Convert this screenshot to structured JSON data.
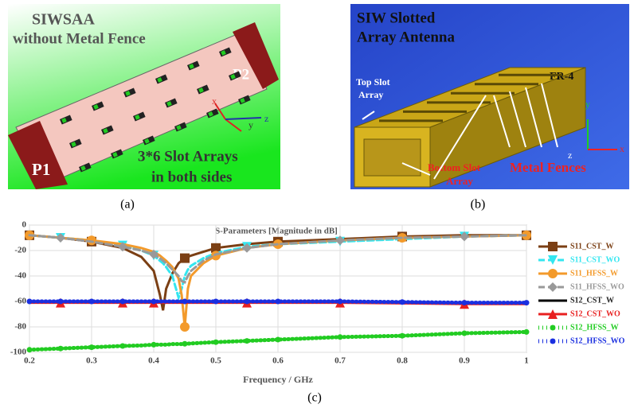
{
  "panels": [
    {
      "caption": "(a)",
      "labels": [
        "SIWSAA",
        "without Metal Fence",
        "P2",
        "P1",
        "3*6 Slot Arrays",
        "in both sides",
        "x",
        "y",
        "z"
      ]
    },
    {
      "caption": "(b)",
      "labels": [
        "SIW Slotted",
        "Array Antenna",
        "FR-4",
        "Top Slot",
        "Array",
        "Bottom Slot",
        "Array",
        "Metal Fences",
        "y",
        "x",
        "z"
      ]
    }
  ],
  "chart_data": {
    "type": "line",
    "title": "S-Parameters [Magnitude in dB]",
    "x_label": "Frequency / GHz",
    "caption": "(c)",
    "x": [
      0.2,
      0.25,
      0.3,
      0.35,
      0.38,
      0.4,
      0.41,
      0.415,
      0.42,
      0.43,
      0.44,
      0.445,
      0.45,
      0.455,
      0.46,
      0.48,
      0.5,
      0.55,
      0.6,
      0.7,
      0.8,
      0.9,
      1.0
    ],
    "series": [
      {
        "name": "S11_CST_W",
        "color": "#7b3f14",
        "style": "solid",
        "marker": "square",
        "values": [
          -8,
          -10,
          -13,
          -18,
          -25,
          -36,
          -55,
          -67,
          -50,
          -38,
          -30,
          -28,
          -26,
          -25,
          -24,
          -21,
          -18,
          -15,
          -13,
          -11,
          -9,
          -8,
          -8
        ]
      },
      {
        "name": "S11_CST_WO",
        "color": "#33e6f0",
        "style": "dashed",
        "marker": "triangle-down",
        "values": [
          -8,
          -10,
          -12,
          -16,
          -20,
          -24,
          -28,
          -30,
          -33,
          -40,
          -57,
          -50,
          -40,
          -35,
          -32,
          -26,
          -22,
          -17,
          -15,
          -13,
          -11,
          -9,
          -8
        ]
      },
      {
        "name": "S11_HFSS_W",
        "color": "#f39a2b",
        "style": "solid",
        "marker": "circle",
        "values": [
          -8,
          -10,
          -12,
          -15,
          -18,
          -21,
          -24,
          -26,
          -28,
          -33,
          -42,
          -55,
          -80,
          -50,
          -40,
          -30,
          -24,
          -18,
          -15,
          -12,
          -10,
          -9,
          -8
        ]
      },
      {
        "name": "S11_HFSS_WO",
        "color": "#999999",
        "style": "dashed",
        "marker": "diamond",
        "values": [
          -8,
          -10,
          -13,
          -17,
          -20,
          -23,
          -26,
          -28,
          -30,
          -35,
          -40,
          -44,
          -45,
          -40,
          -36,
          -28,
          -23,
          -18,
          -15,
          -12,
          -10,
          -9,
          -8
        ]
      },
      {
        "name": "S12_CST_W",
        "color": "#000000",
        "style": "solid",
        "marker": "none",
        "values": [
          -98,
          -97,
          -96,
          -95,
          -94.6,
          -94,
          -94,
          -94,
          -94,
          -93.5,
          -93.5,
          -93.5,
          -93.3,
          -93.2,
          -93,
          -92.5,
          -92,
          -91,
          -90,
          -88,
          -87,
          -85,
          -84
        ]
      },
      {
        "name": "S12_CST_WO",
        "color": "#e82020",
        "style": "solid",
        "marker": "triangle",
        "values": [
          -61,
          -61,
          -61,
          -61,
          -61,
          -61,
          -61,
          -61,
          -61,
          -61,
          -61,
          -61,
          -61,
          -61,
          -61,
          -61,
          -61,
          -61,
          -61,
          -61,
          -61.5,
          -62,
          -62
        ]
      },
      {
        "name": "S12_HFSS_W",
        "color": "#22cc22",
        "style": "dotted",
        "marker": "dot",
        "values": [
          -98,
          -97,
          -96,
          -95,
          -94.6,
          -94,
          -94,
          -94,
          -94,
          -93.5,
          -93.5,
          -93.5,
          -93.3,
          -93.2,
          -93,
          -92.5,
          -92,
          -91,
          -90,
          -88,
          -87,
          -85,
          -84
        ]
      },
      {
        "name": "S12_HFSS_WO",
        "color": "#1a2fe0",
        "style": "dotted",
        "marker": "dot",
        "values": [
          -60,
          -60,
          -60,
          -60,
          -60,
          -60,
          -60,
          -60,
          -60,
          -60,
          -60,
          -60,
          -60,
          -60,
          -60,
          -60,
          -60,
          -60,
          -60,
          -60,
          -60.5,
          -61,
          -61
        ]
      }
    ],
    "xlim": [
      0.2,
      1.0
    ],
    "xticks": [
      0.2,
      0.3,
      0.4,
      0.5,
      0.6,
      0.7,
      0.8,
      0.9,
      1
    ],
    "ylim": [
      -100,
      0
    ],
    "yticks": [
      0,
      -20,
      -40,
      -60,
      -80,
      -100
    ],
    "grid": true
  }
}
